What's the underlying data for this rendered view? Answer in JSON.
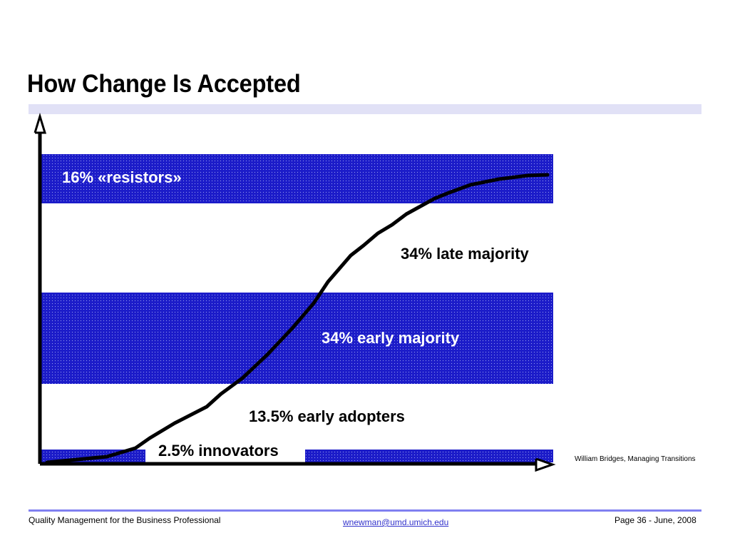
{
  "slide": {
    "title": "How Change Is Accepted",
    "source_note": "William Bridges, Managing Transitions"
  },
  "diagram": {
    "bands": {
      "resistors": "16% «resistors»",
      "late_majority": "34% late majority",
      "early_majority": "34% early majority",
      "early_adopters": "13.5% early adopters",
      "innovators": "2.5% innovators"
    },
    "colors": {
      "band": "#1c1cc9",
      "curve": "#000000",
      "title_rule": "#e1e1f6",
      "footer_rule": "#8080f0"
    }
  },
  "footer": {
    "left": "Quality Management for the Business Professional",
    "email": "wnewman@umd.umich.edu",
    "page": "Page 36 - June, 2008"
  }
}
